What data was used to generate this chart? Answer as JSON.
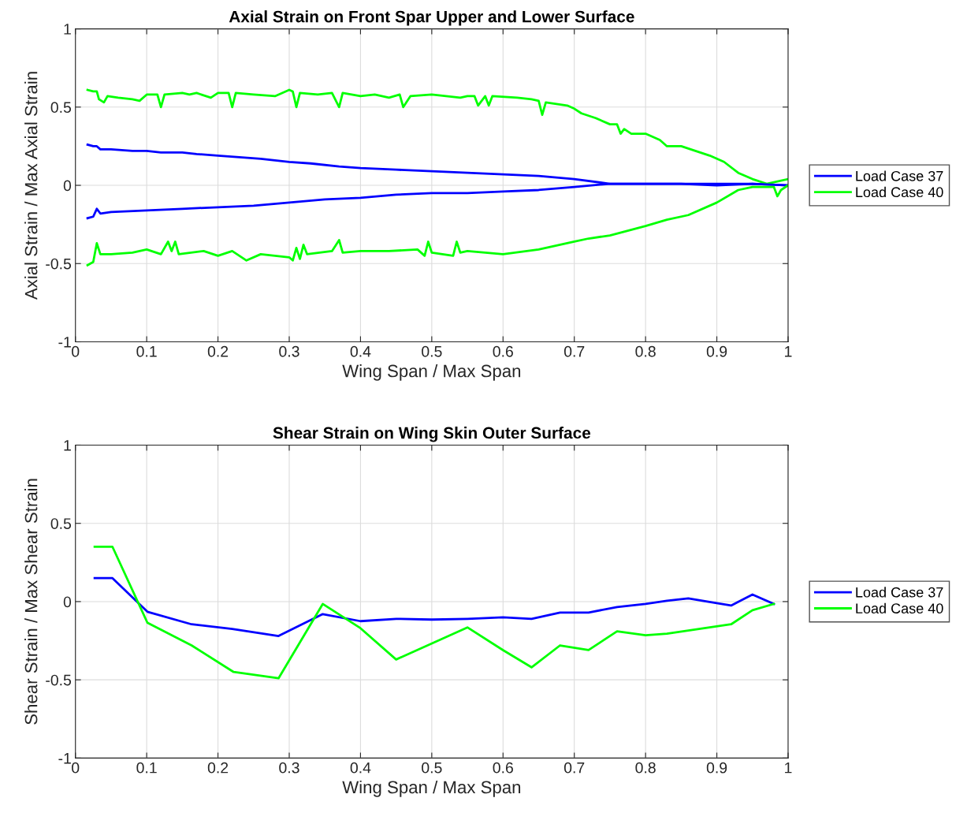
{
  "chart_data": [
    {
      "type": "line",
      "title": "Axial Strain on Front Spar Upper and Lower Surface",
      "xlabel": "Wing Span / Max Span",
      "ylabel": "Axial Strain / Max Axial Strain",
      "xlim": [
        0,
        1
      ],
      "ylim": [
        -1,
        1
      ],
      "xticks": [
        0,
        0.1,
        0.2,
        0.3,
        0.4,
        0.5,
        0.6,
        0.7,
        0.8,
        0.9,
        1
      ],
      "yticks": [
        -1,
        -0.5,
        0,
        0.5,
        1
      ],
      "grid": true,
      "legend": "right",
      "line_style": "solid",
      "marker": "none",
      "series": [
        {
          "name": "Load Case 37",
          "color": "#0000ff",
          "x": [
            0.017,
            0.025,
            0.03,
            0.035,
            0.05,
            0.08,
            0.1,
            0.12,
            0.15,
            0.17,
            0.2,
            0.23,
            0.26,
            0.3,
            0.33,
            0.37,
            0.4,
            0.45,
            0.5,
            0.55,
            0.6,
            0.65,
            0.7,
            0.75,
            0.8,
            0.85,
            0.9,
            0.95,
            1.0
          ],
          "values": [
            0.26,
            0.25,
            0.25,
            0.23,
            0.23,
            0.22,
            0.22,
            0.21,
            0.21,
            0.2,
            0.19,
            0.18,
            0.17,
            0.15,
            0.14,
            0.12,
            0.11,
            0.1,
            0.09,
            0.08,
            0.07,
            0.06,
            0.04,
            0.01,
            0.01,
            0.01,
            0.0,
            0.01,
            0.0
          ]
        },
        {
          "name": "Load Case 40",
          "color": "#00ff00",
          "x": [
            0.017,
            0.025,
            0.03,
            0.033,
            0.04,
            0.045,
            0.06,
            0.08,
            0.09,
            0.1,
            0.115,
            0.12,
            0.125,
            0.15,
            0.16,
            0.17,
            0.19,
            0.2,
            0.215,
            0.22,
            0.225,
            0.25,
            0.28,
            0.3,
            0.305,
            0.31,
            0.315,
            0.34,
            0.36,
            0.37,
            0.375,
            0.4,
            0.42,
            0.44,
            0.455,
            0.46,
            0.47,
            0.5,
            0.52,
            0.54,
            0.55,
            0.56,
            0.565,
            0.575,
            0.58,
            0.585,
            0.62,
            0.64,
            0.65,
            0.655,
            0.66,
            0.69,
            0.7,
            0.71,
            0.73,
            0.75,
            0.76,
            0.765,
            0.77,
            0.78,
            0.8,
            0.82,
            0.83,
            0.85,
            0.87,
            0.89,
            0.91,
            0.93,
            0.95,
            0.97,
            0.98,
            1.0
          ],
          "values": [
            0.61,
            0.6,
            0.6,
            0.55,
            0.53,
            0.57,
            0.56,
            0.55,
            0.54,
            0.58,
            0.58,
            0.5,
            0.58,
            0.59,
            0.58,
            0.59,
            0.56,
            0.59,
            0.59,
            0.5,
            0.59,
            0.58,
            0.57,
            0.61,
            0.6,
            0.5,
            0.59,
            0.58,
            0.59,
            0.5,
            0.59,
            0.57,
            0.58,
            0.56,
            0.58,
            0.5,
            0.57,
            0.58,
            0.57,
            0.56,
            0.57,
            0.57,
            0.51,
            0.57,
            0.51,
            0.57,
            0.56,
            0.55,
            0.54,
            0.45,
            0.53,
            0.51,
            0.49,
            0.46,
            0.43,
            0.39,
            0.39,
            0.33,
            0.36,
            0.33,
            0.33,
            0.29,
            0.25,
            0.25,
            0.22,
            0.19,
            0.15,
            0.08,
            0.04,
            0.01,
            0.02,
            0.04
          ]
        },
        {
          "color": "#0000ff",
          "x": [
            0.017,
            0.025,
            0.03,
            0.035,
            0.05,
            0.1,
            0.15,
            0.2,
            0.25,
            0.3,
            0.35,
            0.4,
            0.45,
            0.5,
            0.55,
            0.6,
            0.65,
            0.7,
            0.75,
            0.8,
            0.85,
            0.9,
            0.95,
            1.0
          ],
          "values": [
            -0.21,
            -0.2,
            -0.15,
            -0.18,
            -0.17,
            -0.16,
            -0.15,
            -0.14,
            -0.13,
            -0.11,
            -0.09,
            -0.08,
            -0.06,
            -0.05,
            -0.05,
            -0.04,
            -0.03,
            -0.01,
            0.01,
            0.01,
            0.01,
            0.01,
            0.01,
            0.0
          ]
        },
        {
          "color": "#00ff00",
          "x": [
            0.017,
            0.025,
            0.03,
            0.035,
            0.05,
            0.08,
            0.1,
            0.12,
            0.13,
            0.135,
            0.14,
            0.145,
            0.18,
            0.2,
            0.22,
            0.24,
            0.26,
            0.3,
            0.305,
            0.31,
            0.315,
            0.32,
            0.325,
            0.36,
            0.37,
            0.375,
            0.4,
            0.44,
            0.48,
            0.49,
            0.495,
            0.5,
            0.53,
            0.535,
            0.54,
            0.55,
            0.6,
            0.65,
            0.7,
            0.72,
            0.75,
            0.8,
            0.83,
            0.86,
            0.9,
            0.93,
            0.95,
            0.98,
            0.985,
            0.99,
            1.0
          ],
          "values": [
            -0.51,
            -0.49,
            -0.37,
            -0.44,
            -0.44,
            -0.43,
            -0.41,
            -0.44,
            -0.36,
            -0.42,
            -0.36,
            -0.44,
            -0.42,
            -0.45,
            -0.42,
            -0.48,
            -0.44,
            -0.46,
            -0.48,
            -0.4,
            -0.47,
            -0.38,
            -0.44,
            -0.42,
            -0.35,
            -0.43,
            -0.42,
            -0.42,
            -0.41,
            -0.45,
            -0.36,
            -0.43,
            -0.45,
            -0.36,
            -0.43,
            -0.42,
            -0.44,
            -0.41,
            -0.36,
            -0.34,
            -0.32,
            -0.26,
            -0.22,
            -0.19,
            -0.11,
            -0.03,
            -0.01,
            -0.01,
            -0.07,
            -0.03,
            0.0
          ]
        }
      ]
    },
    {
      "type": "line",
      "title": "Shear Strain on Wing Skin Outer Surface",
      "xlabel": "Wing Span / Max Span",
      "ylabel": "Shear Strain / Max Shear Strain",
      "xlim": [
        0,
        1
      ],
      "ylim": [
        -1,
        1
      ],
      "xticks": [
        0,
        0.1,
        0.2,
        0.3,
        0.4,
        0.5,
        0.6,
        0.7,
        0.8,
        0.9,
        1
      ],
      "yticks": [
        -1,
        -0.5,
        0,
        0.5,
        1
      ],
      "grid": true,
      "legend": "right",
      "line_style": "solid",
      "marker": "none",
      "series": [
        {
          "name": "Load Case 37",
          "color": "#0000ff",
          "x": [
            0.027,
            0.052,
            0.101,
            0.163,
            0.22,
            0.285,
            0.347,
            0.4,
            0.45,
            0.5,
            0.55,
            0.6,
            0.64,
            0.68,
            0.72,
            0.76,
            0.8,
            0.83,
            0.86,
            0.92,
            0.95,
            0.98
          ],
          "values": [
            0.15,
            0.15,
            -0.065,
            -0.145,
            -0.175,
            -0.22,
            -0.08,
            -0.125,
            -0.11,
            -0.115,
            -0.11,
            -0.1,
            -0.11,
            -0.07,
            -0.07,
            -0.035,
            -0.015,
            0.005,
            0.02,
            -0.025,
            0.045,
            -0.015
          ]
        },
        {
          "name": "Load Case 40",
          "color": "#00ff00",
          "x": [
            0.027,
            0.052,
            0.101,
            0.163,
            0.222,
            0.285,
            0.347,
            0.4,
            0.45,
            0.55,
            0.6,
            0.64,
            0.68,
            0.72,
            0.76,
            0.8,
            0.83,
            0.92,
            0.95,
            0.98
          ],
          "values": [
            0.35,
            0.35,
            -0.135,
            -0.28,
            -0.45,
            -0.49,
            -0.015,
            -0.17,
            -0.37,
            -0.165,
            -0.31,
            -0.42,
            -0.28,
            -0.31,
            -0.19,
            -0.215,
            -0.205,
            -0.145,
            -0.055,
            -0.015
          ]
        }
      ]
    }
  ]
}
